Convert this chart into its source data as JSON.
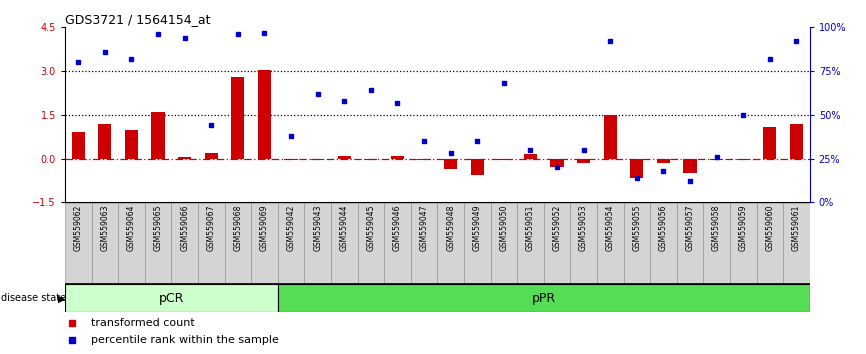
{
  "title": "GDS3721 / 1564154_at",
  "samples": [
    "GSM559062",
    "GSM559063",
    "GSM559064",
    "GSM559065",
    "GSM559066",
    "GSM559067",
    "GSM559068",
    "GSM559069",
    "GSM559042",
    "GSM559043",
    "GSM559044",
    "GSM559045",
    "GSM559046",
    "GSM559047",
    "GSM559048",
    "GSM559049",
    "GSM559050",
    "GSM559051",
    "GSM559052",
    "GSM559053",
    "GSM559054",
    "GSM559055",
    "GSM559056",
    "GSM559057",
    "GSM559058",
    "GSM559059",
    "GSM559060",
    "GSM559061"
  ],
  "transformed_count": [
    0.9,
    1.2,
    1.0,
    1.6,
    0.05,
    0.2,
    2.8,
    3.05,
    -0.05,
    -0.05,
    0.1,
    -0.05,
    0.1,
    -0.05,
    -0.35,
    -0.55,
    -0.05,
    0.15,
    -0.3,
    -0.15,
    1.5,
    -0.65,
    -0.15,
    -0.5,
    -0.05,
    -0.05,
    1.1,
    1.2
  ],
  "percentile_rank": [
    80,
    86,
    82,
    96,
    94,
    44,
    96,
    97,
    38,
    62,
    58,
    64,
    57,
    35,
    28,
    35,
    68,
    30,
    20,
    30,
    92,
    14,
    18,
    12,
    26,
    50,
    82,
    92
  ],
  "pcr_count": 8,
  "ppr_count": 20,
  "bar_color": "#cc0000",
  "dot_color": "#0000cc",
  "pcr_color": "#ccffcc",
  "ppr_color": "#55dd55",
  "ylim_left": [
    -1.5,
    4.5
  ],
  "yticks_left": [
    -1.5,
    0.0,
    1.5,
    3.0,
    4.5
  ],
  "yticks_right": [
    0,
    25,
    50,
    75,
    100
  ],
  "yticklabels_right": [
    "0%",
    "25%",
    "50%",
    "75%",
    "100%"
  ],
  "hlines": [
    1.5,
    3.0
  ],
  "background_color": "#ffffff",
  "title_fontsize": 9,
  "tick_fontsize": 7,
  "sample_fontsize": 5.5,
  "legend_fontsize": 8
}
